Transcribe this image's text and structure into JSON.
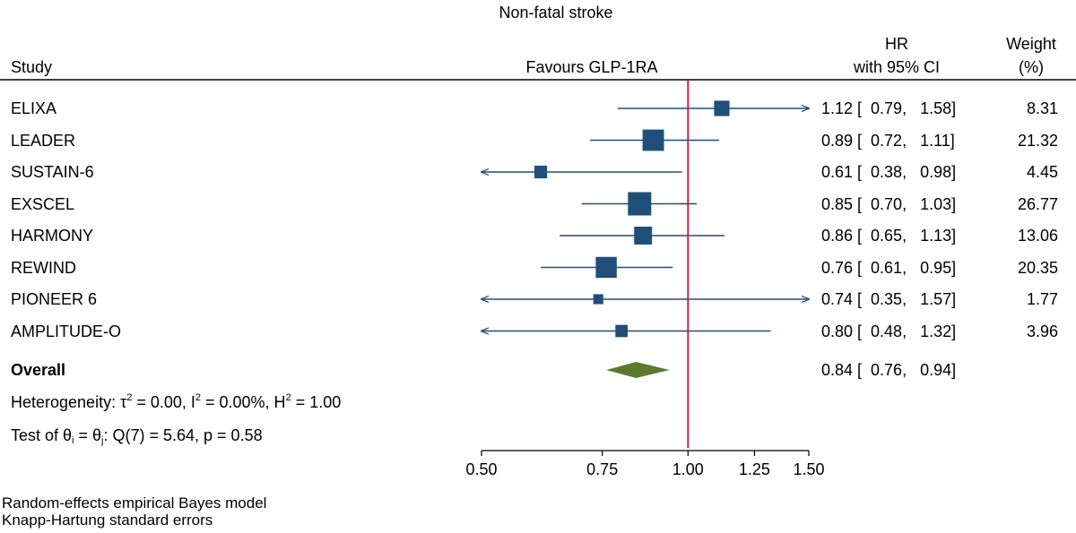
{
  "chart_data": {
    "type": "forest",
    "title": "Non-fatal stroke",
    "headers": {
      "study": "Study",
      "favours": "Favours GLP-1RA",
      "hr_line1": "HR",
      "hr_line2": "with 95% CI",
      "weight_line1": "Weight",
      "weight_line2": "(%)"
    },
    "studies": [
      {
        "name": "ELIXA",
        "hr": 1.12,
        "lo": 0.79,
        "hi": 1.58,
        "weight": 8.31,
        "ci_text": "1.12 [  0.79,   1.58]",
        "weight_text": "8.31"
      },
      {
        "name": "LEADER",
        "hr": 0.89,
        "lo": 0.72,
        "hi": 1.11,
        "weight": 21.32,
        "ci_text": "0.89 [  0.72,   1.11]",
        "weight_text": "21.32"
      },
      {
        "name": "SUSTAIN-6",
        "hr": 0.61,
        "lo": 0.38,
        "hi": 0.98,
        "weight": 4.45,
        "ci_text": "0.61 [  0.38,   0.98]",
        "weight_text": "4.45"
      },
      {
        "name": "EXSCEL",
        "hr": 0.85,
        "lo": 0.7,
        "hi": 1.03,
        "weight": 26.77,
        "ci_text": "0.85 [  0.70,   1.03]",
        "weight_text": "26.77"
      },
      {
        "name": "HARMONY",
        "hr": 0.86,
        "lo": 0.65,
        "hi": 1.13,
        "weight": 13.06,
        "ci_text": "0.86 [  0.65,   1.13]",
        "weight_text": "13.06"
      },
      {
        "name": "REWIND",
        "hr": 0.76,
        "lo": 0.61,
        "hi": 0.95,
        "weight": 20.35,
        "ci_text": "0.76 [  0.61,   0.95]",
        "weight_text": "20.35"
      },
      {
        "name": "PIONEER 6",
        "hr": 0.74,
        "lo": 0.35,
        "hi": 1.57,
        "weight": 1.77,
        "ci_text": "0.74 [  0.35,   1.57]",
        "weight_text": "1.77"
      },
      {
        "name": "AMPLITUDE-O",
        "hr": 0.8,
        "lo": 0.48,
        "hi": 1.32,
        "weight": 3.96,
        "ci_text": "0.80 [  0.48,   1.32]",
        "weight_text": "3.96"
      }
    ],
    "overall": {
      "name": "Overall",
      "hr": 0.84,
      "lo": 0.76,
      "hi": 0.94,
      "ci_text": "0.84 [  0.76,   0.94]"
    },
    "heterogeneity": {
      "prefix": "Heterogeneity: τ",
      "tau_exp": "2",
      "mid1": " = 0.00, I",
      "i_exp": "2",
      "mid2": " = 0.00%, H",
      "h_exp": "2",
      "end": " = 1.00"
    },
    "test": {
      "prefix": "Test of θ",
      "sub_i": "i",
      "mid": " = θ",
      "sub_j": "j",
      "end": ": Q(7) = 5.64, p = 0.58"
    },
    "x_axis": {
      "scale": "log",
      "range": [
        0.5,
        1.5
      ],
      "ticks": [
        0.5,
        0.75,
        1.0,
        1.25,
        1.5
      ],
      "tick_labels": [
        "0.50",
        "0.75",
        "1.00",
        "1.25",
        "1.50"
      ]
    },
    "reference_line": 1.0,
    "notes": [
      "Random-effects empirical Bayes model",
      "Knapp-Hartung standard errors"
    ],
    "colors": {
      "marker": "#1f4e79",
      "ci_line": "#1f4e79",
      "overall_diamond": "#5b7a2e",
      "reference_line": "#c0143c",
      "text": "#000000"
    }
  }
}
